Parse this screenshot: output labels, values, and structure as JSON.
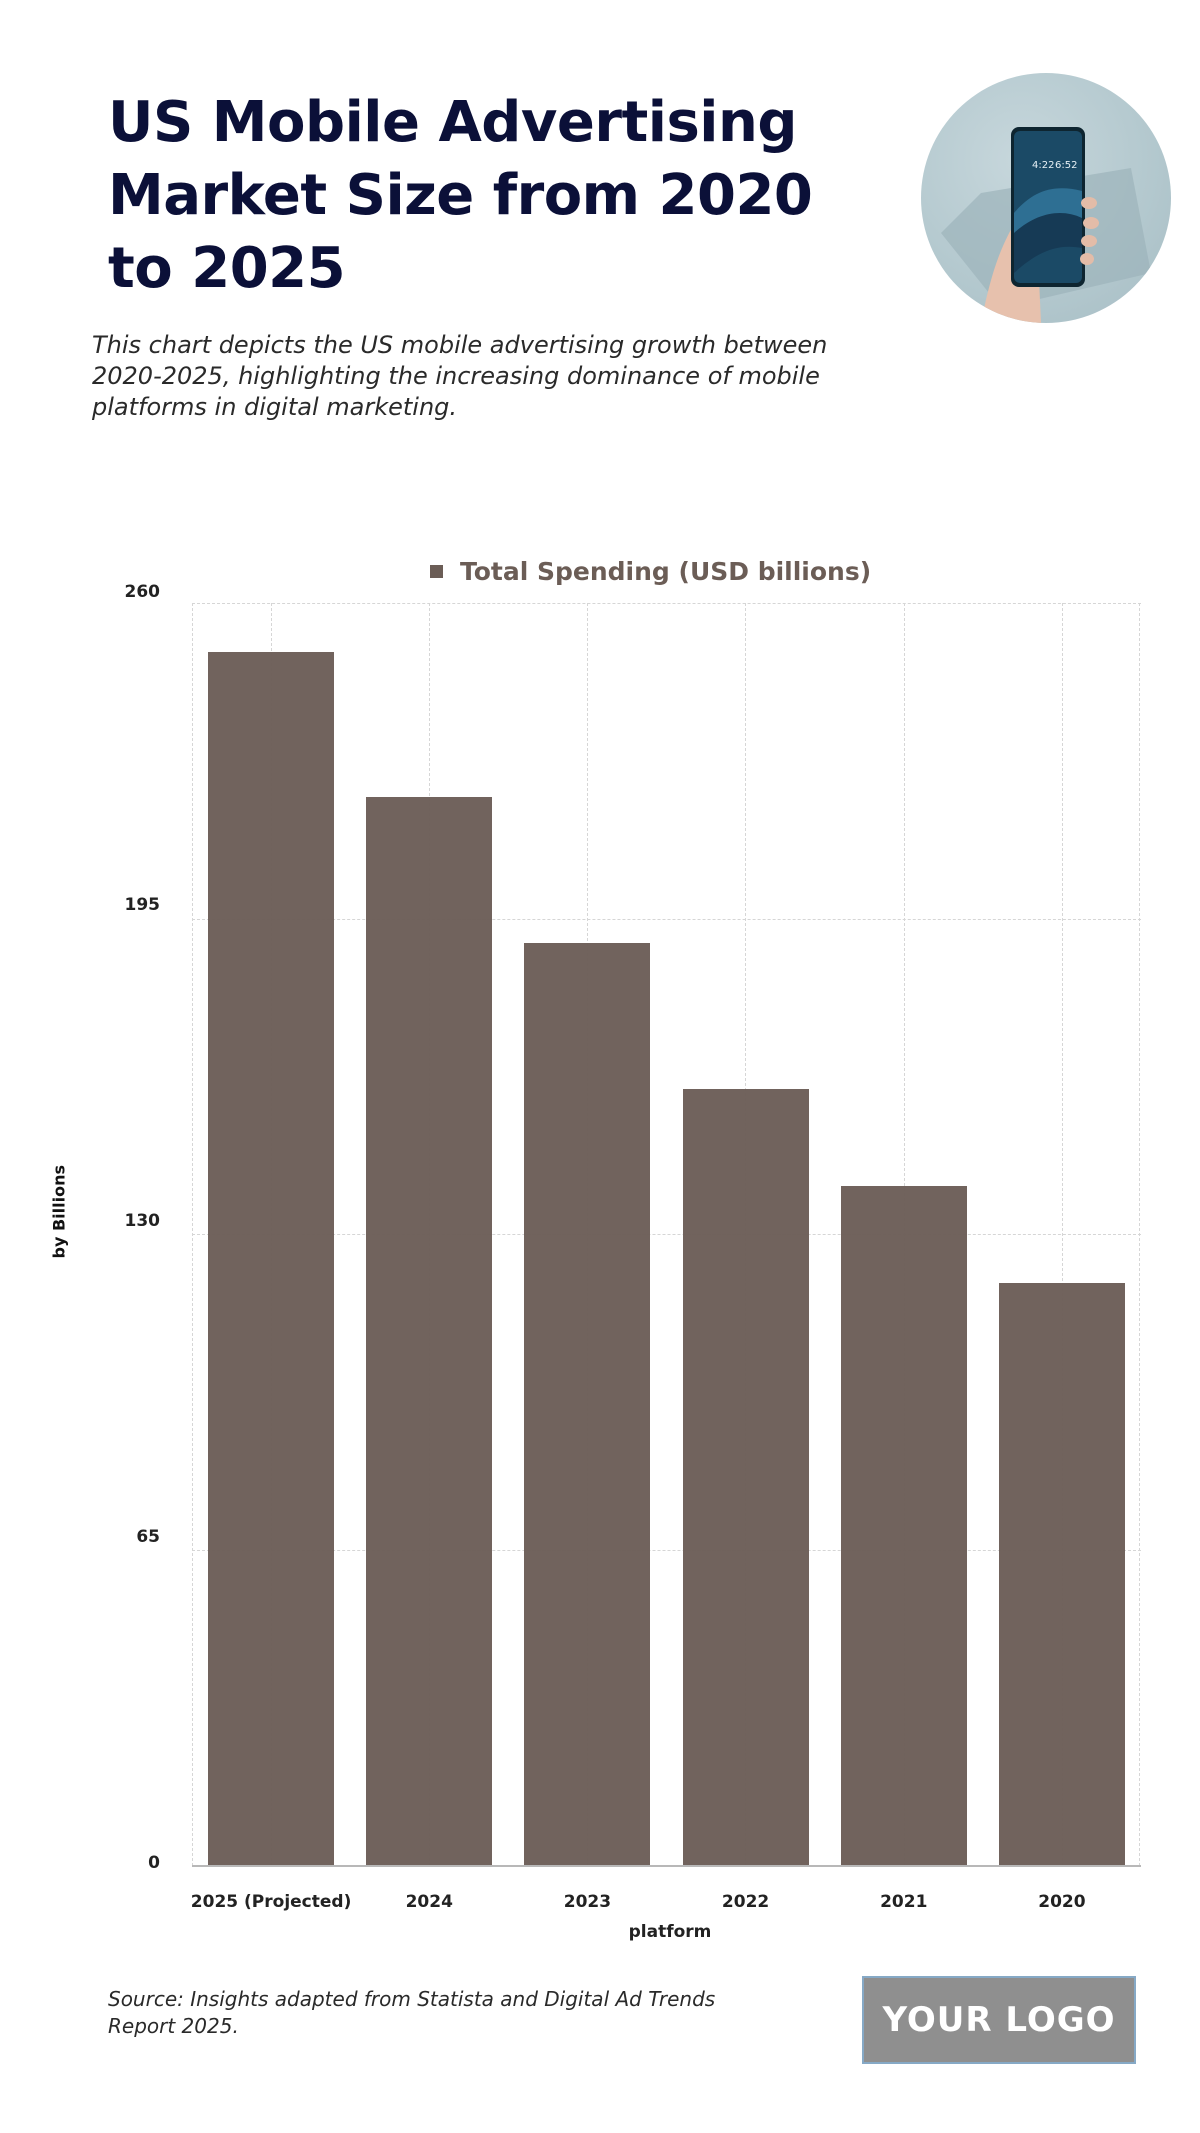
{
  "header": {
    "title": "US Mobile Advertising Market Size from 2020 to 2025",
    "subtitle": "This chart depicts the US mobile advertising growth between 2020-2025, highlighting the increasing dominance of mobile platforms in digital marketing."
  },
  "photo": {
    "description": "hand-holding-smartphone-photo",
    "phone_time_left": "4:22",
    "phone_time_right": "6:52"
  },
  "footer": {
    "source": "Source: Insights adapted from Statista and Digital Ad Trends Report 2025.",
    "logo_text": "YOUR LOGO"
  },
  "colors": {
    "title": "#0b1038",
    "bar": "#6b5d56",
    "legend_text": "#6b5d56",
    "logo_bg": "#8f8f8f",
    "logo_border": "#86a9c6"
  },
  "chart_data": {
    "type": "bar",
    "title": "",
    "legend": [
      "Total Spending (USD billions)"
    ],
    "legend_position": "top",
    "categories": [
      "2025 (Projected)",
      "2024",
      "2023",
      "2022",
      "2021",
      "2020"
    ],
    "series": [
      {
        "name": "Total Spending (USD billions)",
        "values": [
          250,
          220,
          190,
          160,
          140,
          120
        ],
        "color": "#6b5d56"
      }
    ],
    "xlabel": "platform",
    "ylabel": "by Billions",
    "ylim": [
      0,
      260
    ],
    "yticks": [
      0,
      65,
      130,
      195,
      260
    ],
    "grid": true
  }
}
